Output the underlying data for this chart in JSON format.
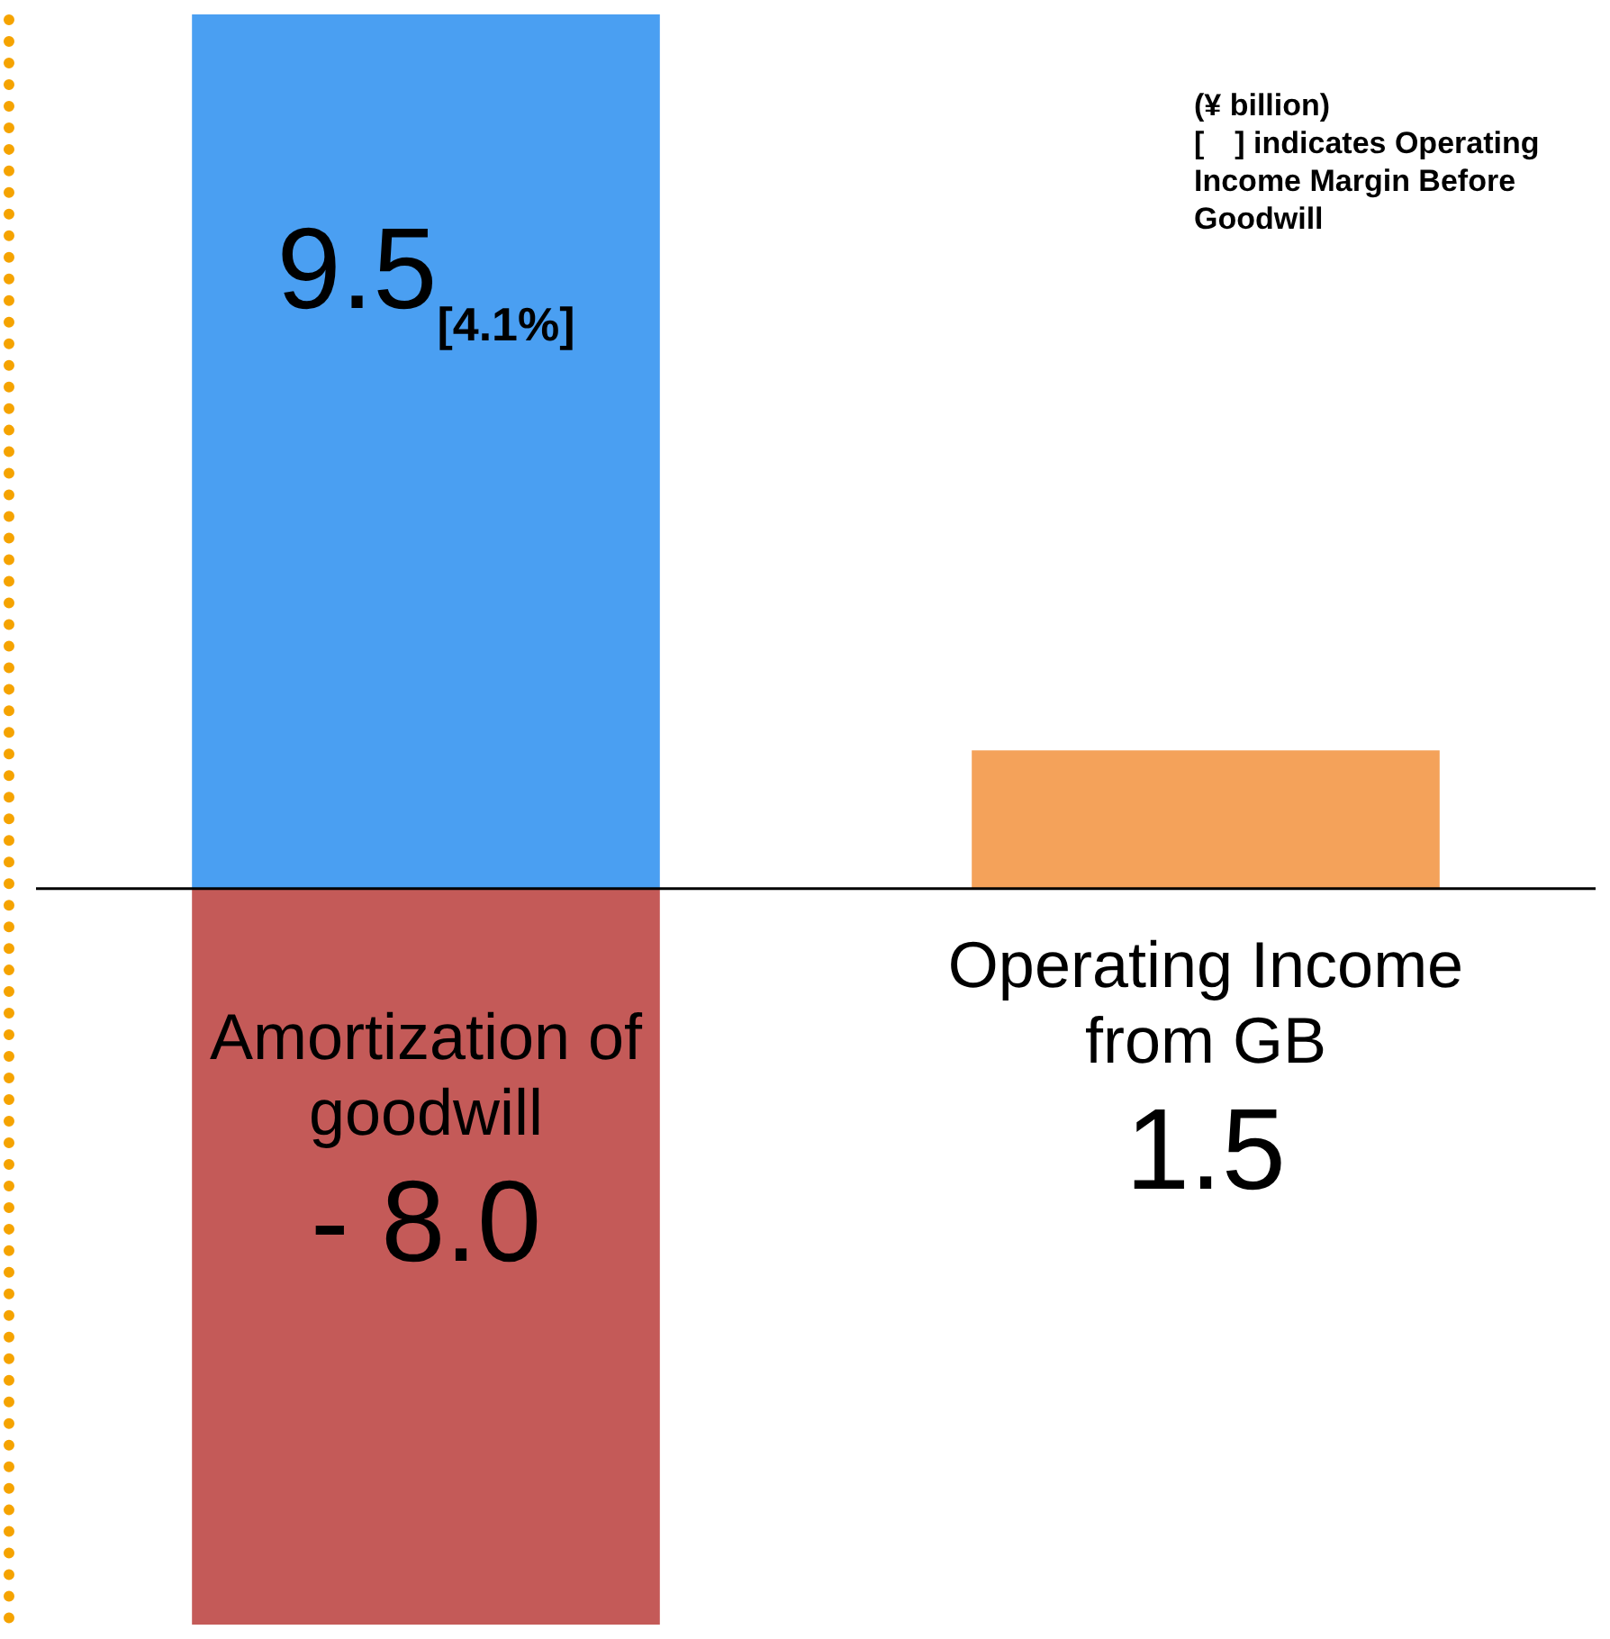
{
  "chart_data": {
    "type": "bar",
    "stacked": true,
    "categories": [
      null,
      null
    ],
    "series": [
      {
        "color": "#4a9ff2",
        "values": [
          9.5,
          null
        ],
        "value_labels": [
          "9.5$_{[4.1%]}$",
          null
        ]
      },
      {
        "name": "Amortization of goodwill",
        "color": "#c45a58",
        "values": [
          -8.0,
          null
        ],
        "value_labels": [
          "- 8.0",
          null
        ]
      },
      {
        "name": "Operating Income from GB",
        "color": "#f4a25a",
        "values": [
          null,
          1.5
        ],
        "value_labels": [
          null,
          "1.5"
        ]
      }
    ],
    "annotations": [
      "(¥ billion)",
      "[　] indicates Operating Income Margin Before Goodwill"
    ]
  }
}
